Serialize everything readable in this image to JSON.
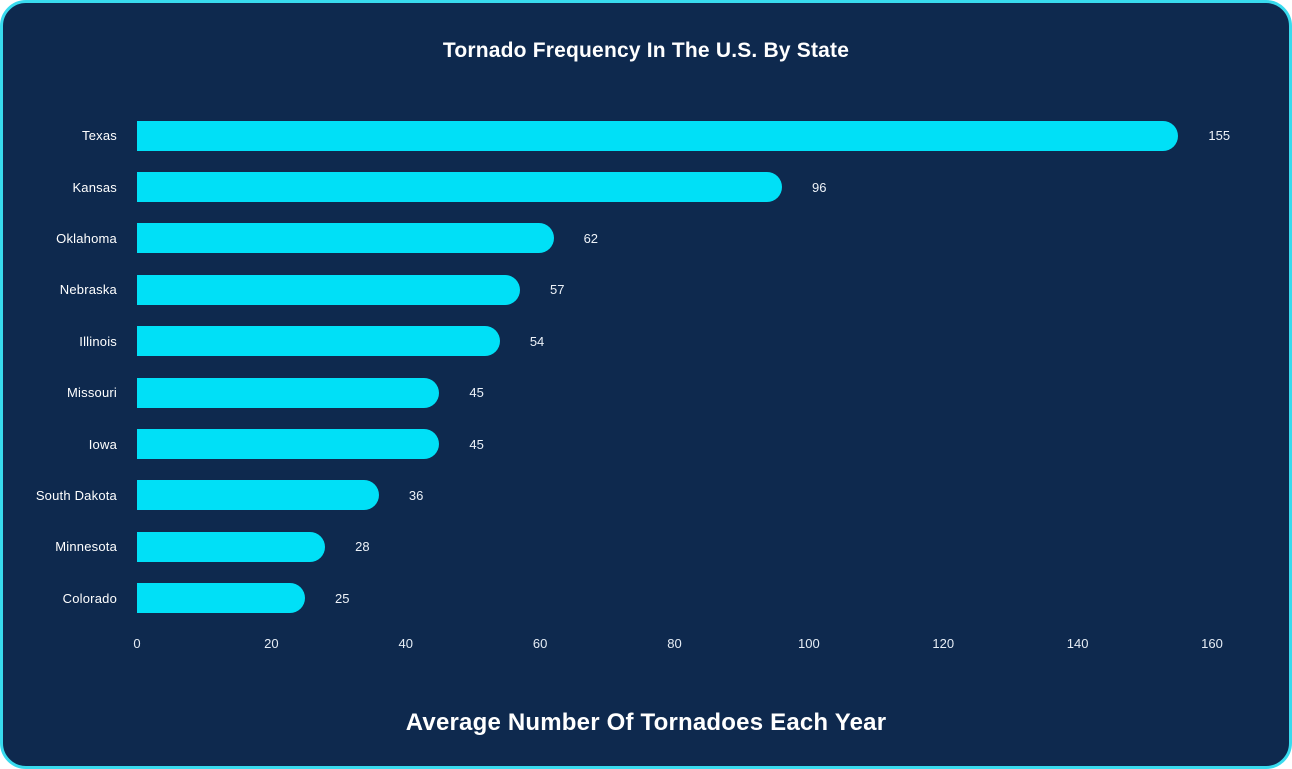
{
  "chart_data": {
    "type": "bar",
    "orientation": "horizontal",
    "title": "Tornado Frequency In The U.S. By State",
    "xlabel": "Average Number Of Tornadoes Each Year",
    "ylabel": "",
    "categories": [
      "Texas",
      "Kansas",
      "Oklahoma",
      "Nebraska",
      "Illinois",
      "Missouri",
      "Iowa",
      "South Dakota",
      "Minnesota",
      "Colorado"
    ],
    "values": [
      155,
      96,
      62,
      57,
      54,
      45,
      45,
      36,
      28,
      25
    ],
    "xlim": [
      0,
      160
    ],
    "xticks": [
      0,
      20,
      40,
      60,
      80,
      100,
      120,
      140,
      160
    ],
    "grid": "off",
    "legend": "none",
    "data_labels": "outside-end",
    "colors": {
      "bar": "#00E0F7",
      "background": "#0E294E",
      "card_border": "#38DBEE",
      "text": "#FFFFFF"
    }
  }
}
